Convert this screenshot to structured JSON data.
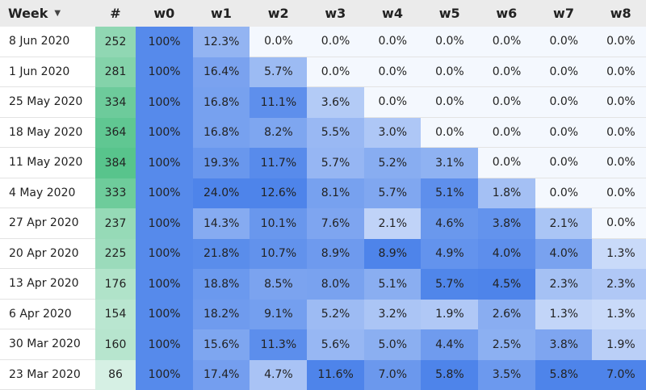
{
  "header": {
    "week_label": "Week",
    "count_label": "#",
    "week_columns": [
      "w0",
      "w1",
      "w2",
      "w3",
      "w4",
      "w5",
      "w6",
      "w7",
      "w8"
    ]
  },
  "colors": {
    "heat_low": "#f4f8fe",
    "heat_high": "#4e84ea",
    "count_low": "#d6f0e4",
    "count_high": "#58c48c",
    "header_bg": "#ebebeb"
  },
  "icons": {
    "sort": "caret-down-icon"
  },
  "chart_data": {
    "type": "heatmap",
    "columns": [
      "w0",
      "w1",
      "w2",
      "w3",
      "w4",
      "w5",
      "w6",
      "w7",
      "w8"
    ],
    "rows": [
      {
        "week": "8 Jun 2020",
        "count": 252,
        "values": [
          "100%",
          "12.3%",
          "0.0%",
          "0.0%",
          "0.0%",
          "0.0%",
          "0.0%",
          "0.0%",
          "0.0%"
        ]
      },
      {
        "week": "1 Jun 2020",
        "count": 281,
        "values": [
          "100%",
          "16.4%",
          "5.7%",
          "0.0%",
          "0.0%",
          "0.0%",
          "0.0%",
          "0.0%",
          "0.0%"
        ]
      },
      {
        "week": "25 May 2020",
        "count": 334,
        "values": [
          "100%",
          "16.8%",
          "11.1%",
          "3.6%",
          "0.0%",
          "0.0%",
          "0.0%",
          "0.0%",
          "0.0%"
        ]
      },
      {
        "week": "18 May 2020",
        "count": 364,
        "values": [
          "100%",
          "16.8%",
          "8.2%",
          "5.5%",
          "3.0%",
          "0.0%",
          "0.0%",
          "0.0%",
          "0.0%"
        ]
      },
      {
        "week": "11 May 2020",
        "count": 384,
        "values": [
          "100%",
          "19.3%",
          "11.7%",
          "5.7%",
          "5.2%",
          "3.1%",
          "0.0%",
          "0.0%",
          "0.0%"
        ]
      },
      {
        "week": "4 May 2020",
        "count": 333,
        "values": [
          "100%",
          "24.0%",
          "12.6%",
          "8.1%",
          "5.7%",
          "5.1%",
          "1.8%",
          "0.0%",
          "0.0%"
        ]
      },
      {
        "week": "27 Apr 2020",
        "count": 237,
        "values": [
          "100%",
          "14.3%",
          "10.1%",
          "7.6%",
          "2.1%",
          "4.6%",
          "3.8%",
          "2.1%",
          "0.0%"
        ]
      },
      {
        "week": "20 Apr 2020",
        "count": 225,
        "values": [
          "100%",
          "21.8%",
          "10.7%",
          "8.9%",
          "8.9%",
          "4.9%",
          "4.0%",
          "4.0%",
          "1.3%"
        ]
      },
      {
        "week": "13 Apr 2020",
        "count": 176,
        "values": [
          "100%",
          "18.8%",
          "8.5%",
          "8.0%",
          "5.1%",
          "5.7%",
          "4.5%",
          "2.3%",
          "2.3%"
        ]
      },
      {
        "week": "6 Apr 2020",
        "count": 154,
        "values": [
          "100%",
          "18.2%",
          "9.1%",
          "5.2%",
          "3.2%",
          "1.9%",
          "2.6%",
          "1.3%",
          "1.3%"
        ]
      },
      {
        "week": "30 Mar 2020",
        "count": 160,
        "values": [
          "100%",
          "15.6%",
          "11.3%",
          "5.6%",
          "5.0%",
          "4.4%",
          "2.5%",
          "3.8%",
          "1.9%"
        ]
      },
      {
        "week": "23 Mar 2020",
        "count": 86,
        "values": [
          "100%",
          "17.4%",
          "4.7%",
          "11.6%",
          "7.0%",
          "5.8%",
          "3.5%",
          "5.8%",
          "7.0%"
        ]
      }
    ]
  }
}
